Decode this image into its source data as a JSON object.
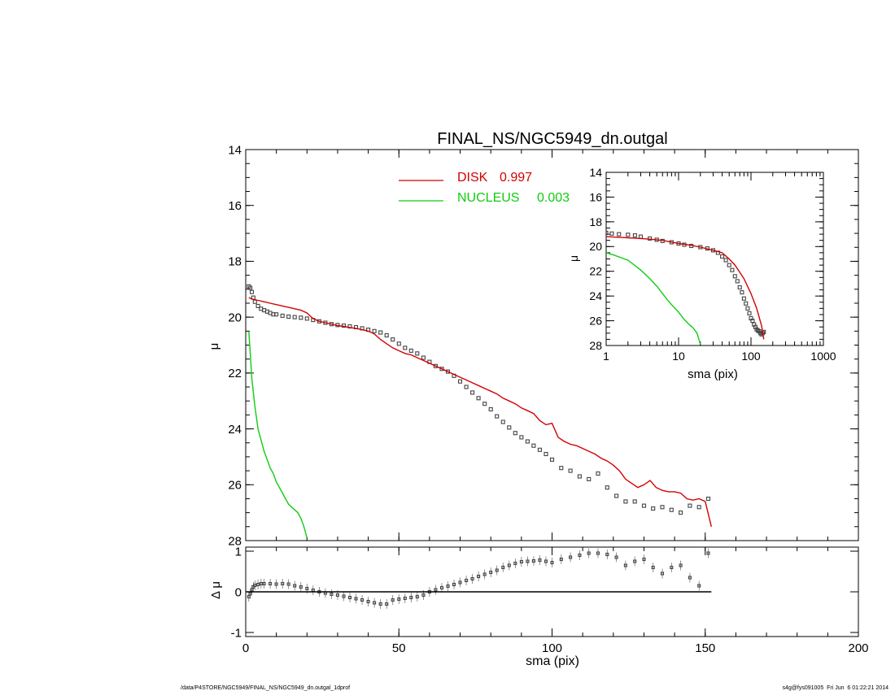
{
  "footer": {
    "path": "/data/P4STORE/NGC5949/FINAL_NS/NGC5949_dn.outgal_1dprof",
    "stamp": "s4g@fys091005  Fri Jun  6 01:22:21 2014"
  },
  "chart_data": [
    {
      "id": "main",
      "type": "line",
      "title": "FINAL_NS/NGC5949_dn.outgal",
      "xlabel": "",
      "ylabel": "μ",
      "xlim": [
        0,
        200
      ],
      "ylim": [
        28,
        14
      ],
      "y_inverted": true,
      "xticks": [
        0,
        50,
        100,
        150,
        200
      ],
      "yticks": [
        14,
        16,
        18,
        20,
        22,
        24,
        26,
        28
      ],
      "legend": {
        "placement": "top-center",
        "entries": [
          {
            "name": "DISK",
            "value": "0.997",
            "color": "#d40000"
          },
          {
            "name": "NUCLEUS",
            "value": "0.003",
            "color": "#11cc11"
          }
        ]
      },
      "series": [
        {
          "name": "data",
          "style": "open-square-markers",
          "color": "#444444",
          "x": [
            1,
            1.5,
            2,
            2.5,
            3,
            4,
            5,
            6,
            7,
            8,
            9,
            10,
            12,
            14,
            16,
            18,
            20,
            22,
            24,
            26,
            28,
            30,
            32,
            34,
            36,
            38,
            40,
            42,
            44,
            46,
            48,
            50,
            52,
            54,
            56,
            58,
            60,
            62,
            64,
            66,
            68,
            70,
            72,
            74,
            76,
            78,
            80,
            82,
            84,
            86,
            88,
            90,
            92,
            94,
            96,
            98,
            100,
            103,
            106,
            109,
            112,
            115,
            118,
            121,
            124,
            127,
            130,
            133,
            136,
            139,
            142,
            145,
            148,
            151
          ],
          "y": [
            18.9,
            18.95,
            19.1,
            19.3,
            19.45,
            19.6,
            19.7,
            19.75,
            19.8,
            19.85,
            19.9,
            19.9,
            19.95,
            19.98,
            20.0,
            20.02,
            20.05,
            20.1,
            20.15,
            20.2,
            20.25,
            20.28,
            20.3,
            20.33,
            20.36,
            20.4,
            20.45,
            20.5,
            20.55,
            20.65,
            20.8,
            20.95,
            21.1,
            21.2,
            21.3,
            21.45,
            21.6,
            21.75,
            21.85,
            21.95,
            22.1,
            22.3,
            22.5,
            22.7,
            22.9,
            23.1,
            23.3,
            23.55,
            23.75,
            23.95,
            24.15,
            24.3,
            24.45,
            24.6,
            24.75,
            24.9,
            25.1,
            25.4,
            25.5,
            25.7,
            25.8,
            25.6,
            26.1,
            26.4,
            26.6,
            26.6,
            26.75,
            26.85,
            26.8,
            26.9,
            27.0,
            26.75,
            26.8,
            26.5
          ]
        },
        {
          "name": "DISK",
          "style": "line",
          "color": "#d40000",
          "x": [
            1,
            2,
            4,
            6,
            8,
            10,
            12,
            14,
            16,
            18,
            20,
            22,
            24,
            26,
            28,
            30,
            32,
            34,
            36,
            38,
            40,
            42,
            44,
            46,
            48,
            50,
            52,
            54,
            56,
            58,
            60,
            62,
            64,
            66,
            68,
            70,
            72,
            74,
            76,
            78,
            80,
            82,
            84,
            86,
            88,
            90,
            92,
            94,
            96,
            98,
            100,
            102,
            104,
            106,
            108,
            110,
            112,
            114,
            116,
            118,
            120,
            122,
            124,
            126,
            128,
            130,
            132,
            134,
            136,
            138,
            140,
            142,
            144,
            146,
            148,
            150,
            152
          ],
          "y": [
            19.3,
            19.35,
            19.4,
            19.45,
            19.5,
            19.55,
            19.6,
            19.65,
            19.7,
            19.75,
            19.85,
            20.05,
            20.15,
            20.2,
            20.25,
            20.3,
            20.33,
            20.37,
            20.4,
            20.45,
            20.5,
            20.6,
            20.8,
            20.95,
            21.1,
            21.2,
            21.3,
            21.35,
            21.45,
            21.55,
            21.65,
            21.75,
            21.85,
            21.95,
            22.05,
            22.15,
            22.25,
            22.35,
            22.45,
            22.55,
            22.65,
            22.75,
            22.9,
            23.0,
            23.1,
            23.25,
            23.35,
            23.45,
            23.7,
            23.85,
            23.8,
            24.3,
            24.45,
            24.55,
            24.6,
            24.7,
            24.8,
            24.9,
            25.05,
            25.15,
            25.3,
            25.5,
            25.8,
            25.95,
            26.1,
            26.0,
            25.85,
            26.1,
            26.2,
            26.25,
            26.25,
            26.3,
            26.5,
            26.55,
            26.5,
            26.6,
            27.5
          ]
        },
        {
          "name": "NUCLEUS",
          "style": "line",
          "color": "#11cc11",
          "x": [
            1,
            1.5,
            2,
            3,
            4,
            5,
            6,
            7,
            8,
            9,
            10,
            11,
            12,
            13,
            14,
            15,
            16,
            17,
            18,
            19,
            20
          ],
          "y": [
            20.5,
            21.3,
            22.2,
            23.2,
            24.0,
            24.4,
            24.8,
            25.1,
            25.4,
            25.6,
            25.9,
            26.1,
            26.3,
            26.5,
            26.7,
            26.8,
            26.9,
            27.0,
            27.2,
            27.5,
            27.9
          ]
        }
      ]
    },
    {
      "id": "residual",
      "type": "scatter",
      "xlabel": "sma (pix)",
      "ylabel": "Δ μ",
      "xlim": [
        0,
        200
      ],
      "ylim": [
        -1.1,
        1.1
      ],
      "xticks": [
        0,
        50,
        100,
        150,
        200
      ],
      "yticks": [
        -1,
        0,
        1
      ],
      "series": [
        {
          "name": "residual",
          "style": "open-square-markers",
          "color": "#444444",
          "x": [
            1,
            1.5,
            2,
            2.5,
            3,
            4,
            5,
            6,
            8,
            10,
            12,
            14,
            16,
            18,
            20,
            22,
            24,
            26,
            28,
            30,
            32,
            34,
            36,
            38,
            40,
            42,
            44,
            46,
            48,
            50,
            52,
            54,
            56,
            58,
            60,
            62,
            64,
            66,
            68,
            70,
            72,
            74,
            76,
            78,
            80,
            82,
            84,
            86,
            88,
            90,
            92,
            94,
            96,
            98,
            100,
            103,
            106,
            109,
            112,
            115,
            118,
            121,
            124,
            127,
            130,
            133,
            136,
            139,
            142,
            145,
            148,
            151
          ],
          "y": [
            -0.12,
            -0.05,
            0.05,
            0.12,
            0.16,
            0.18,
            0.2,
            0.2,
            0.2,
            0.19,
            0.2,
            0.19,
            0.15,
            0.12,
            0.08,
            0.04,
            0.0,
            -0.03,
            -0.06,
            -0.08,
            -0.11,
            -0.14,
            -0.17,
            -0.2,
            -0.24,
            -0.27,
            -0.3,
            -0.3,
            -0.2,
            -0.18,
            -0.16,
            -0.14,
            -0.12,
            -0.08,
            0.0,
            0.05,
            0.1,
            0.14,
            0.18,
            0.23,
            0.28,
            0.32,
            0.38,
            0.43,
            0.48,
            0.53,
            0.6,
            0.65,
            0.7,
            0.74,
            0.75,
            0.76,
            0.78,
            0.75,
            0.72,
            0.8,
            0.85,
            0.9,
            0.95,
            0.95,
            0.92,
            0.85,
            0.65,
            0.75,
            0.8,
            0.6,
            0.45,
            0.6,
            0.65,
            0.35,
            0.15,
            0.95
          ],
          "error_bars": "small vertical"
        },
        {
          "name": "zero",
          "style": "line",
          "color": "#000000",
          "x": [
            0,
            152
          ],
          "y": [
            0,
            0
          ]
        }
      ]
    },
    {
      "id": "inset",
      "type": "line",
      "xlabel": "sma (pix)",
      "ylabel": "μ",
      "xscale": "log",
      "xlim": [
        1,
        1000
      ],
      "ylim": [
        28,
        14
      ],
      "y_inverted": true,
      "xticks": [
        1,
        10,
        100,
        1000
      ],
      "xtick_labels": [
        "1",
        "10",
        "100",
        "1000"
      ],
      "yticks": [
        14,
        16,
        18,
        20,
        22,
        24,
        26,
        28
      ],
      "series": [
        {
          "name": "data",
          "style": "open-square-markers",
          "color": "#444444",
          "x": [
            1,
            1.2,
            1.5,
            2,
            2.5,
            3,
            4,
            5,
            6,
            8,
            10,
            12,
            15,
            20,
            25,
            30,
            35,
            40,
            45,
            50,
            55,
            60,
            65,
            70,
            75,
            80,
            85,
            90,
            95,
            100,
            105,
            110,
            115,
            120,
            125,
            130,
            135,
            140,
            145,
            150
          ],
          "y": [
            18.9,
            18.95,
            19.0,
            19.05,
            19.1,
            19.2,
            19.35,
            19.45,
            19.55,
            19.65,
            19.75,
            19.85,
            19.95,
            20.05,
            20.15,
            20.3,
            20.5,
            20.8,
            21.1,
            21.5,
            21.9,
            22.4,
            22.8,
            23.3,
            23.7,
            24.2,
            24.6,
            25.0,
            25.4,
            25.8,
            26.0,
            26.3,
            26.5,
            26.7,
            26.8,
            26.85,
            27.0,
            27.1,
            27.0,
            26.9
          ]
        },
        {
          "name": "DISK",
          "style": "line",
          "color": "#d40000",
          "x": [
            1,
            1.5,
            2,
            3,
            4,
            6,
            10,
            15,
            20,
            30,
            40,
            50,
            60,
            80,
            100,
            120,
            140,
            150
          ],
          "y": [
            19.2,
            19.25,
            19.3,
            19.35,
            19.4,
            19.5,
            19.75,
            19.9,
            20.05,
            20.3,
            20.5,
            21.0,
            21.5,
            22.6,
            23.8,
            25.0,
            26.4,
            27.5
          ]
        },
        {
          "name": "NUCLEUS",
          "style": "line",
          "color": "#11cc11",
          "x": [
            1,
            1.3,
            1.6,
            2,
            3,
            4,
            5,
            6,
            7,
            8,
            10,
            12,
            14,
            16,
            18,
            20
          ],
          "y": [
            20.5,
            20.7,
            20.9,
            21.1,
            21.9,
            22.6,
            23.2,
            23.8,
            24.3,
            24.7,
            25.3,
            25.9,
            26.3,
            26.6,
            27.0,
            27.9
          ]
        }
      ]
    }
  ]
}
